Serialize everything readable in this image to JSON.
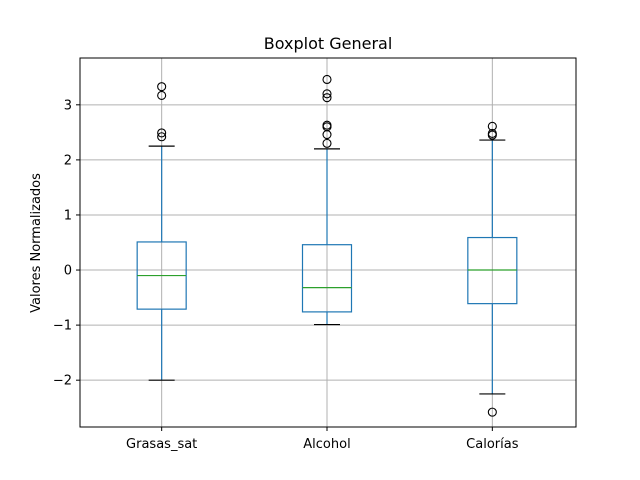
{
  "chart_data": {
    "type": "box",
    "title": "Boxplot General",
    "xlabel": "",
    "ylabel": "Valores Normalizados",
    "ylim": [
      -2.85,
      3.85
    ],
    "yticks": [
      -2,
      -1,
      0,
      1,
      2,
      3
    ],
    "ytick_labels": [
      "−2",
      "−1",
      "0",
      "1",
      "2",
      "3"
    ],
    "grid": true,
    "categories": [
      "Grasas_sat",
      "Alcohol",
      "Calorías"
    ],
    "boxes": [
      {
        "label": "Grasas_sat",
        "whisker_low": -2.0,
        "q1": -0.71,
        "median": -0.1,
        "q3": 0.51,
        "whisker_high": 2.25,
        "outliers": [
          2.42,
          2.49,
          3.17,
          3.33
        ]
      },
      {
        "label": "Alcohol",
        "whisker_low": -0.99,
        "q1": -0.76,
        "median": -0.32,
        "q3": 0.46,
        "whisker_high": 2.2,
        "outliers": [
          2.3,
          2.46,
          2.6,
          2.63,
          3.13,
          3.2,
          3.46
        ]
      },
      {
        "label": "Calorías",
        "whisker_low": -2.25,
        "q1": -0.61,
        "median": 0.0,
        "q3": 0.59,
        "whisker_high": 2.36,
        "outliers": [
          2.45,
          2.48,
          2.61,
          -2.58
        ]
      }
    ],
    "colors": {
      "box": "#1f77b4",
      "median": "#2ca02c",
      "grid": "#b0b0b0",
      "flier": "#000000",
      "cap": "#000000"
    }
  }
}
